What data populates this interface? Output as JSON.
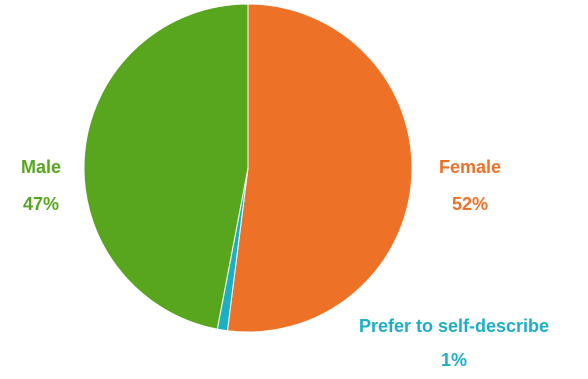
{
  "chart_data": {
    "type": "pie",
    "title": "",
    "slices": [
      {
        "label": "Female",
        "value": 52,
        "value_label": "52%",
        "color": "#ED7228"
      },
      {
        "label": "Prefer to self-describe",
        "value": 1,
        "value_label": "1%",
        "color": "#1BAFC6"
      },
      {
        "label": "Male",
        "value": 47,
        "value_label": "47%",
        "color": "#58A61E"
      }
    ],
    "start_angle": "12 o'clock",
    "direction": "clockwise",
    "legend": "none",
    "data_labels": "outside, category name and percentage, in slice color"
  }
}
